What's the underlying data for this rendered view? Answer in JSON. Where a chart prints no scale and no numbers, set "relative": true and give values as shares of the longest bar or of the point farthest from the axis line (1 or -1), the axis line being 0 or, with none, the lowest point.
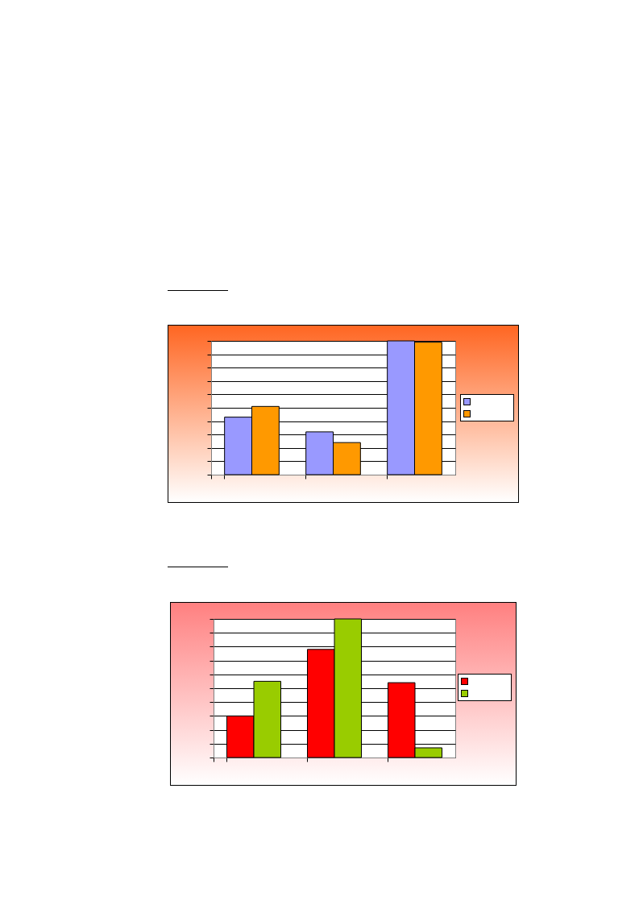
{
  "chart_data": [
    {
      "type": "bar",
      "relative": true,
      "grid": "y",
      "categories": [
        null,
        null,
        null
      ],
      "series": [
        {
          "color": "#9999ff",
          "values": [
            0.43,
            0.32,
            1
          ]
        },
        {
          "color": "#ff9900",
          "values": [
            0.51,
            0.24,
            0.99
          ]
        }
      ]
    },
    {
      "type": "bar",
      "relative": true,
      "grid": "y",
      "categories": [
        null,
        null,
        null
      ],
      "series": [
        {
          "color": "#ff0000",
          "values": [
            0.3,
            0.78,
            0.54
          ]
        },
        {
          "color": "#99cc00",
          "values": [
            0.55,
            1,
            0.07
          ]
        }
      ]
    }
  ]
}
